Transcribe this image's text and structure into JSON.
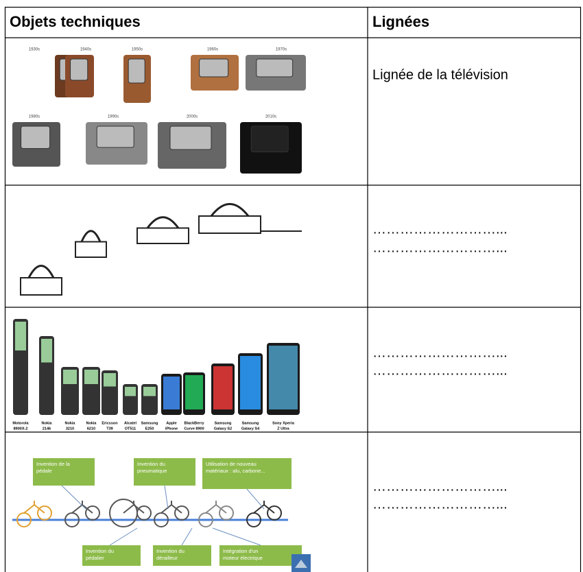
{
  "header": [
    "Objets techniques",
    "Lignées"
  ],
  "rows": [
    {
      "lineage": [
        "Lignée de la télévision"
      ],
      "image_labels": [
        "1930s",
        "1940s",
        "1950s",
        "1960s",
        "1970s",
        "1980s",
        "1990s",
        "2000s",
        "2010s"
      ]
    },
    {
      "lineage": [
        "………………………...",
        "………………………..."
      ]
    },
    {
      "lineage": [
        "………………………...",
        "………………………..."
      ],
      "image_labels": [
        [
          "Motorola",
          "8900X-2"
        ],
        [
          "Nokia",
          "2146"
        ],
        [
          "Nokia",
          "3210"
        ],
        [
          "Nokia",
          "6210"
        ],
        [
          "Ericsson",
          "T39"
        ],
        [
          "Alcatel",
          "OT511"
        ],
        [
          "Samsung",
          "E250"
        ],
        [
          "Apple",
          "iPhone"
        ],
        [
          "BlackBerry",
          "Curve 8900"
        ],
        [
          "Samsung",
          "Galaxy S2"
        ],
        [
          "Samsung",
          "Galaxy S4"
        ],
        [
          "Sony Xperia",
          "Z Ultra"
        ]
      ]
    },
    {
      "lineage": [
        "………………………...",
        "………………………..."
      ],
      "image_labels": [
        [
          "Invention de la",
          "pédale"
        ],
        [
          "Invention du",
          "pneumatique"
        ],
        [
          "Utilisation de nouveau",
          "matériaux : alu, carbone..."
        ],
        [
          "Invention du",
          "pédalier"
        ],
        [
          "Invention du",
          "dérailleur"
        ],
        [
          "Intégration d'un",
          "moteur électrique"
        ]
      ]
    }
  ]
}
